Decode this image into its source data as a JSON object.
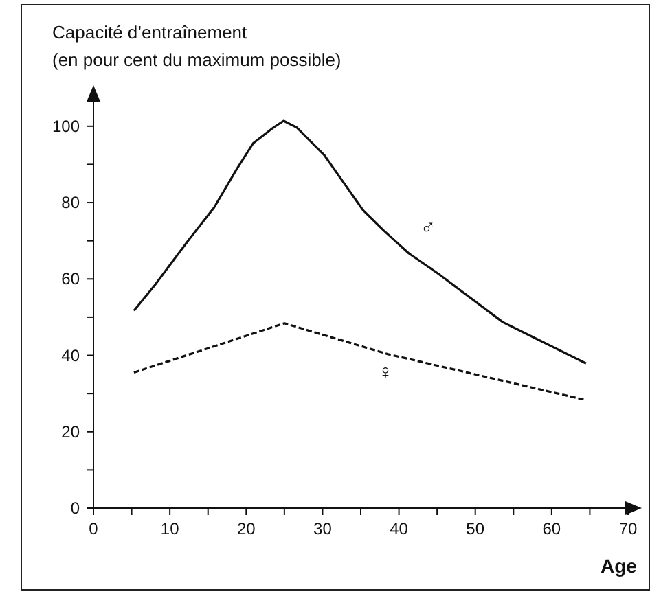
{
  "chart_data": {
    "type": "line",
    "ylabel": "Capacité d’entraînement\n(en pour cent du maximum possible)",
    "xlabel": "Age",
    "xlim": [
      0,
      70
    ],
    "xticks": [
      0,
      {
        "value": 5,
        "label": null
      },
      10,
      {
        "value": 15,
        "label": null
      },
      20,
      {
        "value": 25,
        "label": null
      },
      30,
      {
        "value": 35,
        "label": null
      },
      40,
      {
        "value": 45,
        "label": null
      },
      50,
      {
        "value": 55,
        "label": null
      },
      60,
      {
        "value": 65,
        "label": null
      },
      70
    ],
    "ylim": [
      0,
      105
    ],
    "yticks": [
      0,
      {
        "value": 10,
        "label": null
      },
      20,
      {
        "value": 30,
        "label": null
      },
      40,
      {
        "value": 50,
        "label": null
      },
      60,
      {
        "value": 70,
        "label": null
      },
      80,
      {
        "value": 90,
        "label": null
      },
      100
    ],
    "grid": false,
    "legend": false,
    "marker": "none",
    "series": [
      {
        "name": "♂",
        "color": "#111111",
        "line_style": "solid",
        "x": [
          5.3,
          8,
          12.5,
          15.8,
          18.8,
          20.9,
          23.6,
          24.9,
          26.6,
          30.2,
          33.2,
          35.3,
          38,
          41.3,
          45.2,
          53.6,
          64.5
        ],
        "values": [
          51.7,
          58.3,
          70.3,
          78.7,
          88.9,
          95.5,
          99.7,
          101.4,
          99.7,
          92.5,
          84,
          78,
          72.7,
          66.7,
          61.3,
          48.7,
          37.9
        ]
      },
      {
        "name": "♀",
        "color": "#111111",
        "line_style": "dashed",
        "x": [
          5.3,
          25,
          38.6,
          64.5
        ],
        "values": [
          35.5,
          48.4,
          40.3,
          28.3
        ]
      }
    ]
  }
}
